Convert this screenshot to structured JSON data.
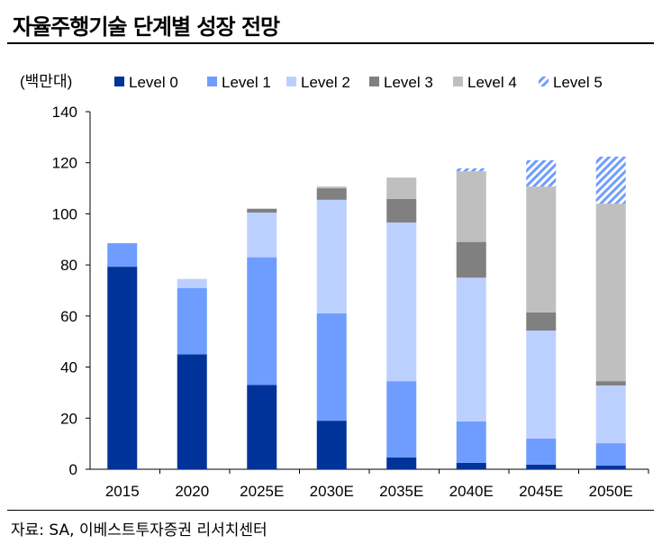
{
  "title": "자율주행기술 단계별 성장 전망",
  "source": "자료: SA, 이베스트투자증권 리서치센터",
  "chart_data": {
    "type": "bar",
    "stacked": true,
    "ylabel": "(백만대)",
    "ylim": [
      0,
      140
    ],
    "yticks": [
      0,
      20,
      40,
      60,
      80,
      100,
      120,
      140
    ],
    "legend_position": "top",
    "categories": [
      "2015",
      "2020",
      "2025E",
      "2030E",
      "2035E",
      "2040E",
      "2045E",
      "2050E"
    ],
    "series": [
      {
        "name": "Level 0",
        "color": "#003399",
        "values": [
          79.3,
          45,
          33,
          19,
          4.6,
          2.5,
          1.8,
          1.4
        ]
      },
      {
        "name": "Level 1",
        "color": "#6f9dff",
        "values": [
          9.2,
          26,
          50,
          42,
          29.9,
          16.2,
          10.2,
          8.8
        ]
      },
      {
        "name": "Level 2",
        "color": "#bcd0ff",
        "values": [
          0,
          3.5,
          17.5,
          44.5,
          62.1,
          56.3,
          42.3,
          22.6
        ]
      },
      {
        "name": "Level 3",
        "color": "#808080",
        "values": [
          0,
          0,
          1.5,
          4.5,
          9.2,
          14,
          7.1,
          1.7
        ]
      },
      {
        "name": "Level 4",
        "color": "#bfbfbf",
        "values": [
          0,
          0,
          0,
          0.7,
          8.4,
          27.7,
          49.3,
          69.5
        ]
      },
      {
        "name": "Level 5",
        "color": "#6f9dff",
        "pattern": "hatch",
        "values": [
          0,
          0,
          0,
          0,
          0,
          1.1,
          10.3,
          18.4
        ]
      }
    ]
  }
}
